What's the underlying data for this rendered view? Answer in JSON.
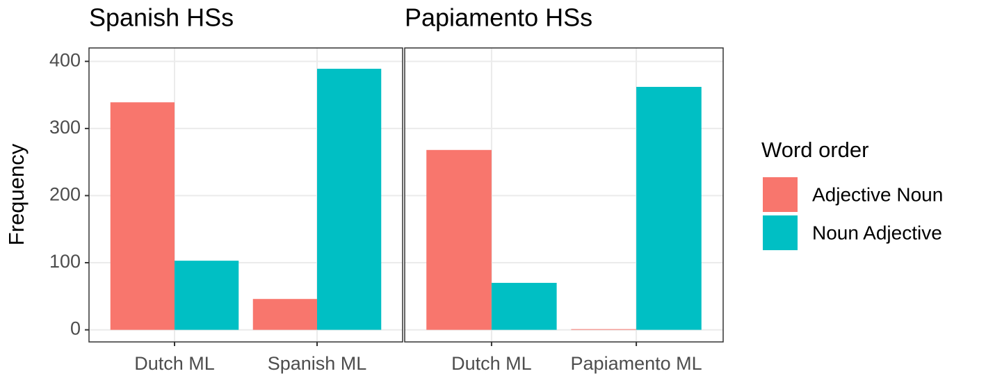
{
  "chart_data": [
    {
      "type": "bar",
      "title": "Spanish HSs",
      "ylabel": "Frequency",
      "legend_title": "Word order",
      "categories": [
        "Dutch ML",
        "Spanish ML"
      ],
      "series": [
        {
          "name": "Adjective Noun",
          "color": "#f8766d",
          "values": [
            339,
            46
          ]
        },
        {
          "name": "Noun Adjective",
          "color": "#00bfc4",
          "values": [
            103,
            389
          ]
        }
      ],
      "ylim": [
        -18,
        420
      ],
      "yticks": [
        0,
        100,
        200,
        300,
        400
      ],
      "grid": true
    },
    {
      "type": "bar",
      "title": "Papiamento HSs",
      "categories": [
        "Dutch ML",
        "Papiamento ML"
      ],
      "series": [
        {
          "color": "#f8766d",
          "values": [
            268,
            1
          ]
        },
        {
          "color": "#00bfc4",
          "values": [
            70,
            362
          ]
        }
      ],
      "ylim": [
        -18,
        420
      ],
      "yticks": [
        0,
        100,
        200,
        300,
        400
      ],
      "grid": true
    }
  ]
}
